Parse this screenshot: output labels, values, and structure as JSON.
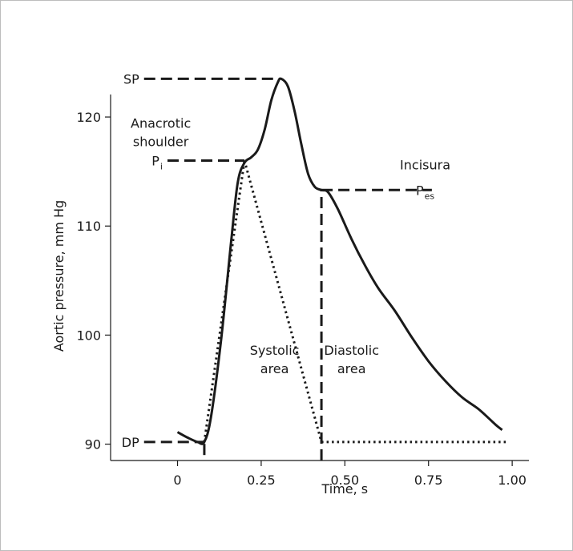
{
  "chart_data": {
    "type": "line",
    "xlabel": "Time, s",
    "ylabel": "Aortic pressure, mm Hg",
    "xlim": [
      -0.2,
      1.05
    ],
    "ylim": [
      88.5,
      125
    ],
    "xticks": [
      {
        "value": 0,
        "label": "0"
      },
      {
        "value": 0.25,
        "label": "0.25"
      },
      {
        "value": 0.5,
        "label": "0.50"
      },
      {
        "value": 0.75,
        "label": "0.75"
      },
      {
        "value": 1.0,
        "label": "1.00"
      }
    ],
    "yticks": [
      {
        "value": 90,
        "label": "90"
      },
      {
        "value": 100,
        "label": "100"
      },
      {
        "value": 110,
        "label": "110"
      },
      {
        "value": 120,
        "label": "120"
      }
    ],
    "grid": false,
    "waveform": [
      [
        0.0,
        91.1
      ],
      [
        0.03,
        90.6
      ],
      [
        0.06,
        90.2
      ],
      [
        0.08,
        90.2
      ],
      [
        0.1,
        92.5
      ],
      [
        0.13,
        99.5
      ],
      [
        0.16,
        108.5
      ],
      [
        0.18,
        114.0
      ],
      [
        0.2,
        115.8
      ],
      [
        0.22,
        116.3
      ],
      [
        0.24,
        117.0
      ],
      [
        0.26,
        118.8
      ],
      [
        0.28,
        121.5
      ],
      [
        0.3,
        123.2
      ],
      [
        0.31,
        123.5
      ],
      [
        0.33,
        122.8
      ],
      [
        0.35,
        120.5
      ],
      [
        0.37,
        117.5
      ],
      [
        0.39,
        114.8
      ],
      [
        0.41,
        113.6
      ],
      [
        0.43,
        113.3
      ],
      [
        0.45,
        113.1
      ],
      [
        0.48,
        111.5
      ],
      [
        0.52,
        108.8
      ],
      [
        0.56,
        106.4
      ],
      [
        0.6,
        104.3
      ],
      [
        0.65,
        102.2
      ],
      [
        0.7,
        99.8
      ],
      [
        0.75,
        97.6
      ],
      [
        0.8,
        95.8
      ],
      [
        0.85,
        94.3
      ],
      [
        0.9,
        93.2
      ],
      [
        0.95,
        91.8
      ],
      [
        0.97,
        91.3
      ]
    ],
    "levels": {
      "SP": {
        "label": "SP",
        "value": 123.5,
        "x_from": -0.1,
        "x_to": 0.3
      },
      "Pi": {
        "label": "P",
        "sub": "i",
        "value": 116.0,
        "x_from": -0.03,
        "x_to": 0.2
      },
      "Pes": {
        "label": "P",
        "sub": "es",
        "value": 113.3,
        "x_from": 0.43,
        "x_to": 0.76
      },
      "DP": {
        "label": "DP",
        "value": 90.2,
        "x_from": -0.1,
        "x_to": 0.08
      }
    },
    "dotted_lines": [
      {
        "from": [
          0.08,
          90.2
        ],
        "to": [
          0.2,
          116.0
        ]
      },
      {
        "from": [
          0.2,
          116.0
        ],
        "to": [
          0.43,
          90.2
        ]
      },
      {
        "from": [
          0.43,
          90.2
        ],
        "to": [
          0.99,
          90.2
        ]
      }
    ],
    "dashed_verticals": [
      {
        "x": 0.08,
        "from": 89.0,
        "to": 90.2
      },
      {
        "x": 0.43,
        "from": 88.5,
        "to": 113.3
      }
    ],
    "annotations": [
      {
        "id": "anacrotic",
        "lines": [
          "Anacrotic",
          "shoulder"
        ],
        "x": -0.05,
        "y": 119.0
      },
      {
        "id": "incisura",
        "lines": [
          "Incisura"
        ],
        "x": 0.74,
        "y": 115.2
      },
      {
        "id": "systolic",
        "lines": [
          "Systolic",
          "area"
        ],
        "x": 0.29,
        "y": 98.2
      },
      {
        "id": "diastolic",
        "lines": [
          "Diastolic",
          "area"
        ],
        "x": 0.52,
        "y": 98.2
      }
    ]
  }
}
